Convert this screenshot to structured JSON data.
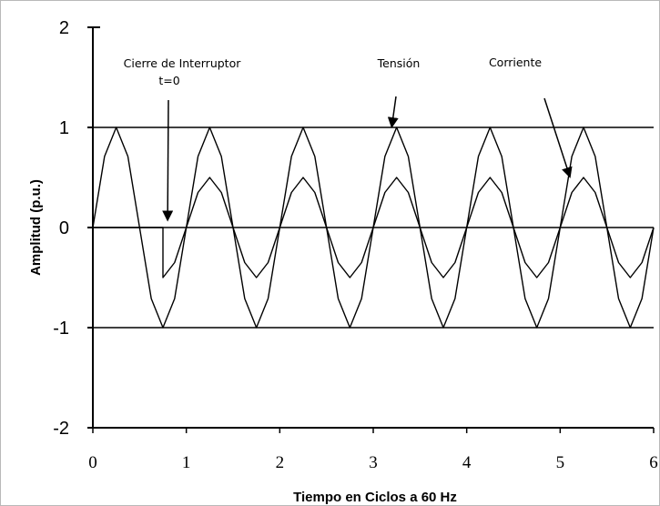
{
  "chart_data": {
    "type": "line",
    "xlabel": "Tiempo en Ciclos a 60 Hz",
    "ylabel": "Amplitud (p.u.)",
    "xlim": [
      0,
      6
    ],
    "ylim": [
      -2,
      2
    ],
    "x_ticks": [
      "0",
      "1",
      "2",
      "3",
      "4",
      "5",
      "6"
    ],
    "y_ticks": [
      "2",
      "1",
      "0",
      "-1",
      "-2"
    ],
    "y_gridlines": [
      1,
      0,
      -1,
      -2
    ],
    "series": [
      {
        "id": "tension",
        "description": "sine, amplitude 1.0 p.u., 60 Hz",
        "x": [
          0,
          0.125,
          0.25,
          0.375,
          0.5,
          0.625,
          0.75,
          0.875,
          1,
          1.125,
          1.25,
          1.375,
          1.5,
          1.625,
          1.75,
          1.875,
          2,
          2.125,
          2.25,
          2.375,
          2.5,
          2.625,
          2.75,
          2.875,
          3,
          3.125,
          3.25,
          3.375,
          3.5,
          3.625,
          3.75,
          3.875,
          4,
          4.125,
          4.25,
          4.375,
          4.5,
          4.625,
          4.75,
          4.875,
          5,
          5.125,
          5.25,
          5.375,
          5.5,
          5.625,
          5.75,
          5.875,
          6
        ],
        "y": [
          0,
          0.71,
          1,
          0.71,
          0,
          -0.71,
          -1,
          -0.71,
          0,
          0.71,
          1,
          0.71,
          0,
          -0.71,
          -1,
          -0.71,
          0,
          0.71,
          1,
          0.71,
          0,
          -0.71,
          -1,
          -0.71,
          0,
          0.71,
          1,
          0.71,
          0,
          -0.71,
          -1,
          -0.71,
          0,
          0.71,
          1,
          0.71,
          0,
          -0.71,
          -1,
          -0.71,
          0,
          0.71,
          1,
          0.71,
          0,
          -0.71,
          -1,
          -0.71,
          0
        ]
      },
      {
        "id": "corriente",
        "description": "zero until switch closes at t≈0.75 cycle, then 0.5 p.u. sine lagging 90°",
        "x": [
          0,
          0.75,
          0.75,
          0.875,
          1,
          1.125,
          1.25,
          1.375,
          1.5,
          1.625,
          1.75,
          1.875,
          2,
          2.125,
          2.25,
          2.375,
          2.5,
          2.625,
          2.75,
          2.875,
          3,
          3.125,
          3.25,
          3.375,
          3.5,
          3.625,
          3.75,
          3.875,
          4,
          4.125,
          4.25,
          4.375,
          4.5,
          4.625,
          4.75,
          4.875,
          5,
          5.125,
          5.25,
          5.375,
          5.5,
          5.625,
          5.75,
          5.875,
          6
        ],
        "y": [
          0,
          0,
          -0.5,
          -0.35,
          0,
          0.35,
          0.5,
          0.35,
          0,
          -0.35,
          -0.5,
          -0.35,
          0,
          0.35,
          0.5,
          0.35,
          0,
          -0.35,
          -0.5,
          -0.35,
          0,
          0.35,
          0.5,
          0.35,
          0,
          -0.35,
          -0.5,
          -0.35,
          0,
          0.35,
          0.5,
          0.35,
          0,
          -0.35,
          -0.5,
          -0.35,
          0,
          0.35,
          0.5,
          0.35,
          0,
          -0.35,
          -0.5,
          -0.35,
          0
        ]
      }
    ],
    "annotations": [
      {
        "id": "cierre",
        "lines": [
          "Cierre de Interruptor",
          "t=0"
        ],
        "arrow_tip": [
          0.8,
          0.05
        ]
      },
      {
        "id": "tension",
        "lines": [
          "Tensión"
        ],
        "arrow_tip": [
          3.2,
          1.0
        ]
      },
      {
        "id": "corriente",
        "lines": [
          "Corriente"
        ],
        "arrow_tip": [
          5.1,
          0.5
        ]
      }
    ]
  }
}
